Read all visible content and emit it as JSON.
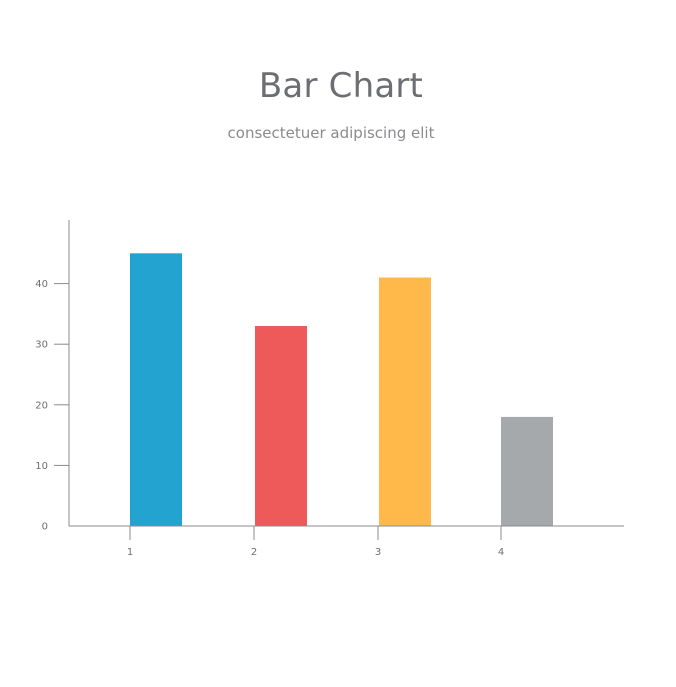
{
  "chart_data": {
    "type": "bar",
    "title": "Bar Chart",
    "subtitle": "consectetuer adipiscing elit",
    "categories": [
      "1",
      "2",
      "3",
      "4"
    ],
    "values": [
      45,
      33,
      41,
      18
    ],
    "colors": [
      "#23a3d0",
      "#ee5a5a",
      "#ffb94a",
      "#a6a9ac"
    ],
    "ylim": [
      0,
      50
    ],
    "yticks": [
      0,
      10,
      20,
      30,
      40
    ],
    "ytick_labels": [
      "0",
      "10",
      "20",
      "30",
      "40"
    ],
    "xlabel": "",
    "ylabel": "",
    "grid": false,
    "legend": false
  }
}
